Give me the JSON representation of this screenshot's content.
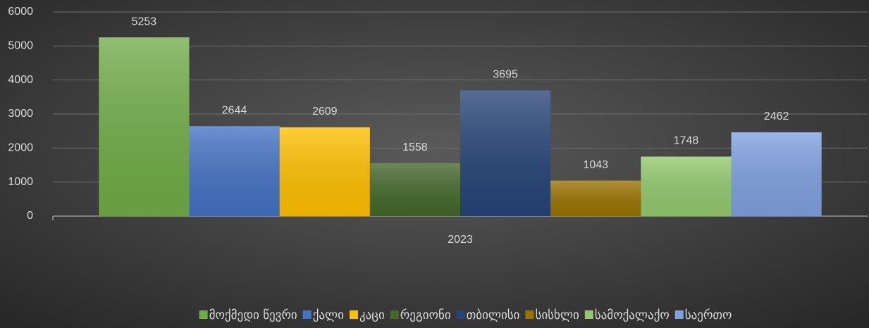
{
  "chart_data": {
    "type": "bar",
    "categories": [
      "2023"
    ],
    "series": [
      {
        "name": "მოქმედი წევრი",
        "color": "#70ad47",
        "values": [
          5253
        ]
      },
      {
        "name": "ქალი",
        "color": "#4472c4",
        "values": [
          2644
        ]
      },
      {
        "name": "კაცი",
        "color": "#ffc000",
        "values": [
          2609
        ]
      },
      {
        "name": "რეგიონი",
        "color": "#43682b",
        "values": [
          1558
        ]
      },
      {
        "name": "თბილისი",
        "color": "#264478",
        "values": [
          3695
        ]
      },
      {
        "name": "სისხლი",
        "color": "#997300",
        "values": [
          1043
        ]
      },
      {
        "name": "სამოქალაქო",
        "color": "#92c96d",
        "values": [
          1748
        ]
      },
      {
        "name": "საერთო",
        "color": "#7fa1e0",
        "values": [
          2462
        ]
      }
    ],
    "ylim": [
      0,
      6000
    ],
    "yticks": [
      0,
      1000,
      2000,
      3000,
      4000,
      5000,
      6000
    ],
    "grid": true,
    "legend": "bottom"
  }
}
